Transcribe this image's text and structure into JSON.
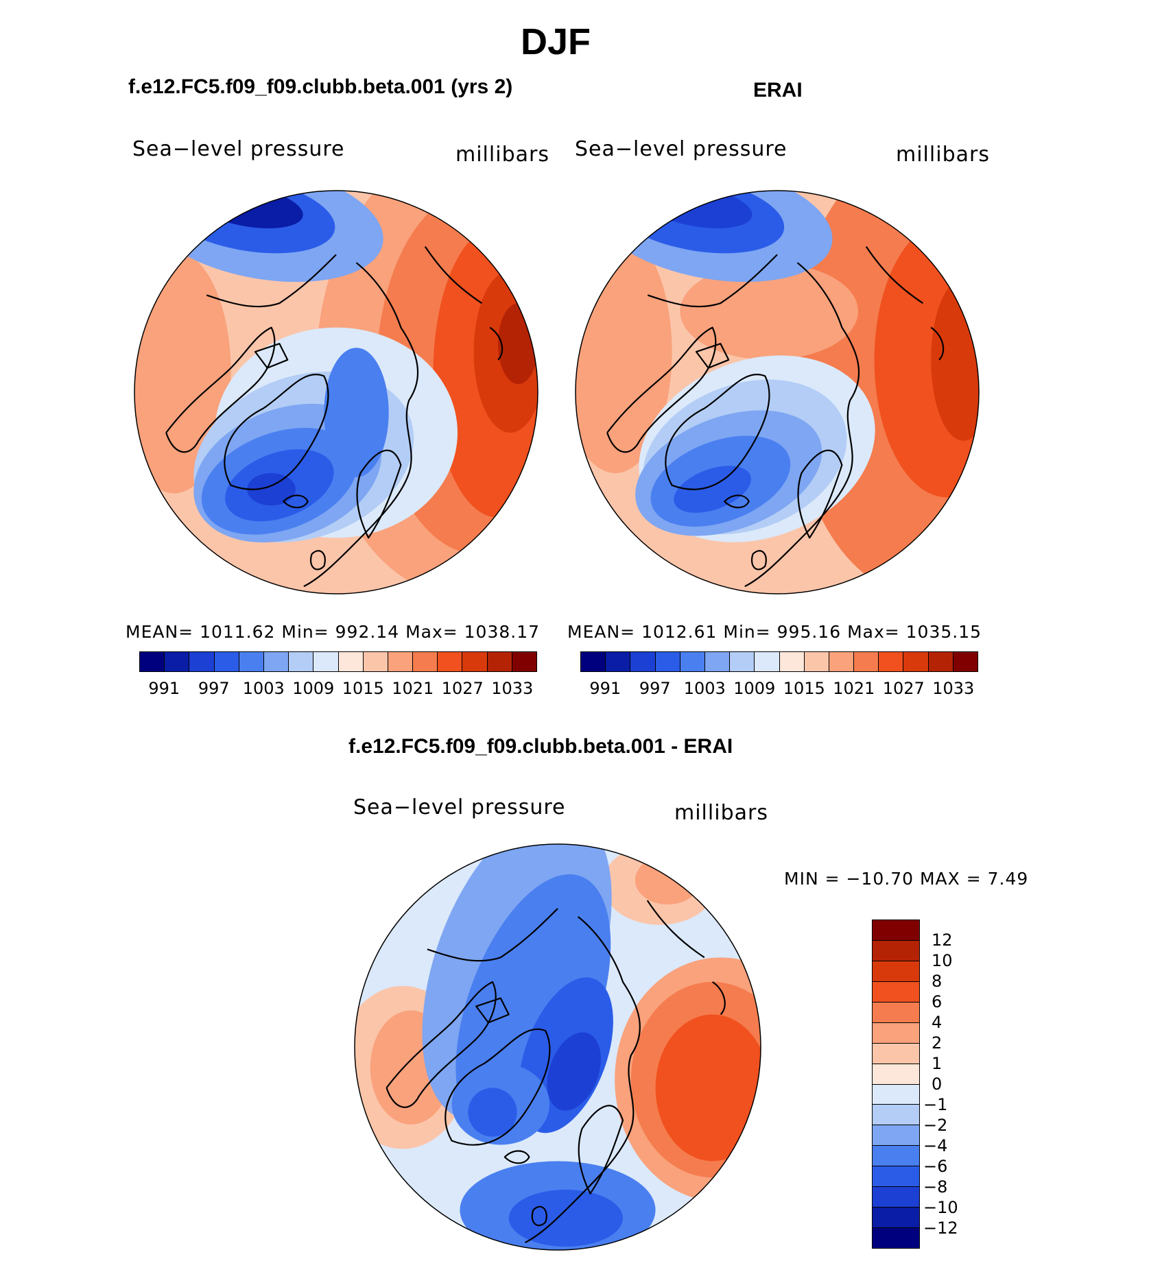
{
  "figure": {
    "title": "DJF",
    "field_label": "Sea−level pressure",
    "units_label": "millibars"
  },
  "colors": {
    "abs_scale": [
      "#00007f",
      "#0a1da6",
      "#1c40d4",
      "#2b5ce8",
      "#4a7ff0",
      "#7ea6f2",
      "#b3cdf6",
      "#dbe9fa",
      "#fde7da",
      "#fbc5aa",
      "#f9a27c",
      "#f57c4e",
      "#f0511e",
      "#d93a0c",
      "#b52305",
      "#800000"
    ],
    "diff_scale": [
      "#800000",
      "#b52305",
      "#d93a0c",
      "#f0511e",
      "#f57c4e",
      "#f9a27c",
      "#fbc5aa",
      "#fde7da",
      "#dbe9fa",
      "#b3cdf6",
      "#7ea6f2",
      "#4a7ff0",
      "#2b5ce8",
      "#1c40d4",
      "#0a1da6",
      "#00007f"
    ]
  },
  "panels": [
    {
      "title": "f.e12.FC5.f09_f09.clubb.beta.001 (yrs 2)",
      "stats": "MEAN=  1011.62    Min=  992.14    Max=  1038.17",
      "colorbar_ticks": [
        "991",
        "997",
        "1003",
        "1009",
        "1015",
        "1021",
        "1027",
        "1033"
      ]
    },
    {
      "title": "ERAI",
      "stats": "MEAN=  1012.61    Min=  995.16    Max=  1035.15",
      "colorbar_ticks": [
        "991",
        "997",
        "1003",
        "1009",
        "1015",
        "1021",
        "1027",
        "1033"
      ]
    },
    {
      "title": "f.e12.FC5.f09_f09.clubb.beta.001 - ERAI",
      "stats": "MIN  =  −10.70  MAX  =      7.49",
      "colorbar_ticks": [
        "12",
        "10",
        "8",
        "6",
        "4",
        "2",
        "1",
        "0",
        "−1",
        "−2",
        "−4",
        "−6",
        "−8",
        "−10",
        "−12"
      ]
    }
  ]
}
